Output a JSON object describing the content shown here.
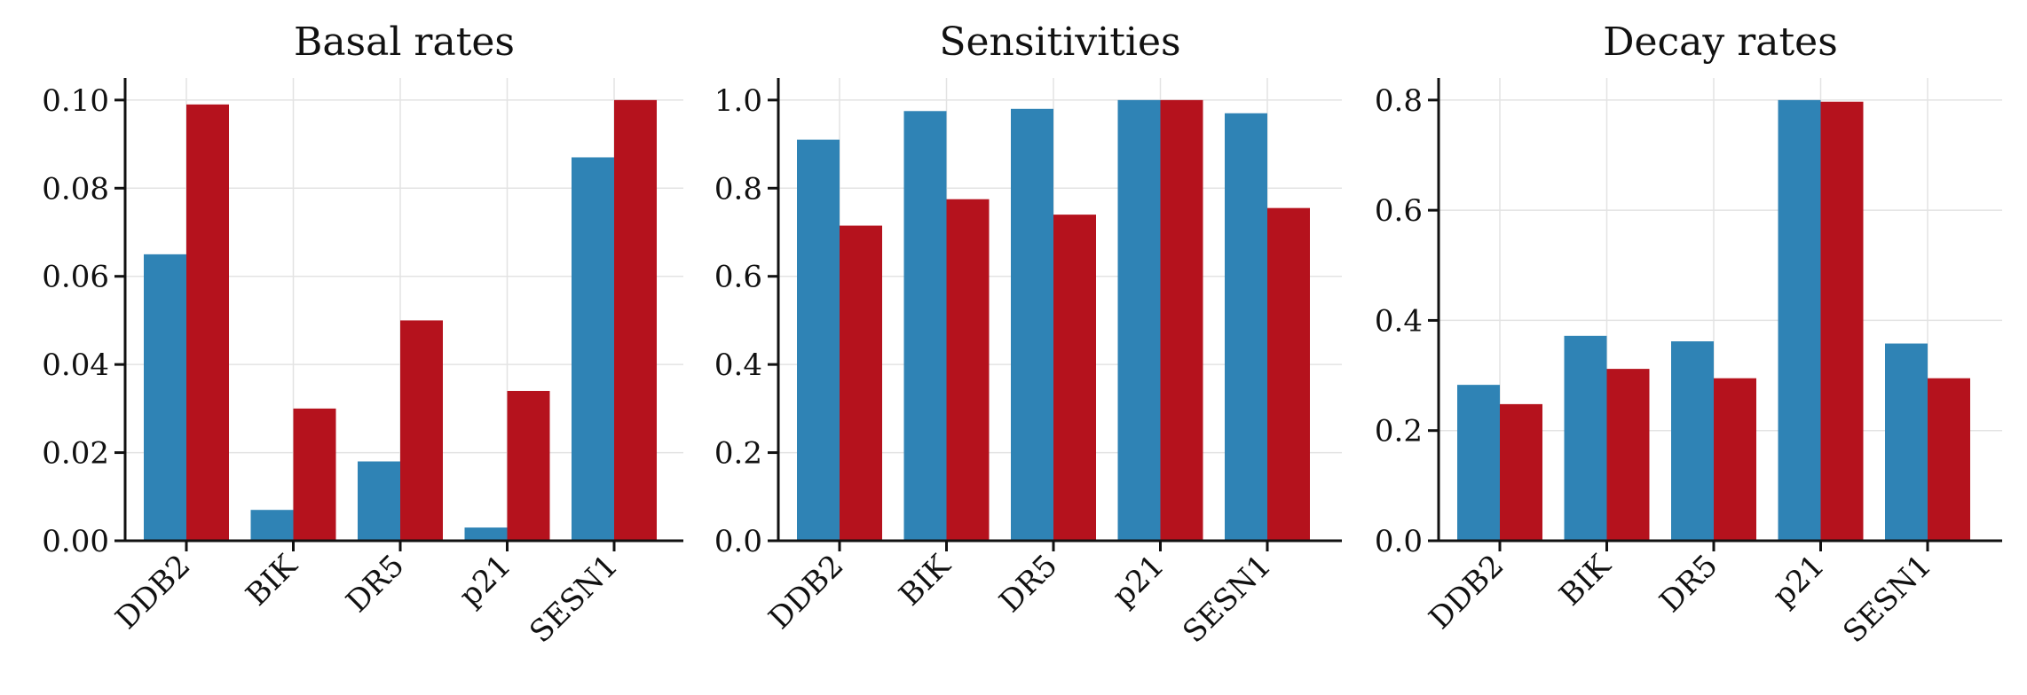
{
  "colors": {
    "series_a": "#2f83b5",
    "series_b": "#b5121d"
  },
  "chart_data": [
    {
      "type": "bar",
      "title": "Basal rates",
      "categories": [
        "DDB2",
        "BIK",
        "DR5",
        "p21",
        "SESN1"
      ],
      "series": [
        {
          "values": [
            0.065,
            0.007,
            0.018,
            0.003,
            0.087
          ]
        },
        {
          "values": [
            0.099,
            0.03,
            0.05,
            0.034,
            0.1
          ]
        }
      ],
      "ylim": [
        0,
        0.105
      ],
      "yticks": [
        0,
        0.02,
        0.04,
        0.06,
        0.08,
        0.1
      ],
      "ytick_labels": [
        "0.00",
        "0.02",
        "0.04",
        "0.06",
        "0.08",
        "0.10"
      ],
      "grid": true
    },
    {
      "type": "bar",
      "title": "Sensitivities",
      "categories": [
        "DDB2",
        "BIK",
        "DR5",
        "p21",
        "SESN1"
      ],
      "series": [
        {
          "values": [
            0.91,
            0.975,
            0.98,
            1.0,
            0.97
          ]
        },
        {
          "values": [
            0.715,
            0.775,
            0.74,
            1.0,
            0.755
          ]
        }
      ],
      "ylim": [
        0,
        1.05
      ],
      "yticks": [
        0,
        0.2,
        0.4,
        0.6,
        0.8,
        1.0
      ],
      "ytick_labels": [
        "0.0",
        "0.2",
        "0.4",
        "0.6",
        "0.8",
        "1.0"
      ],
      "grid": true
    },
    {
      "type": "bar",
      "title": "Decay rates",
      "categories": [
        "DDB2",
        "BIK",
        "DR5",
        "p21",
        "SESN1"
      ],
      "series": [
        {
          "values": [
            0.283,
            0.372,
            0.362,
            0.8,
            0.358
          ]
        },
        {
          "values": [
            0.248,
            0.312,
            0.295,
            0.797,
            0.295
          ]
        }
      ],
      "ylim": [
        0,
        0.84
      ],
      "yticks": [
        0,
        0.2,
        0.4,
        0.6,
        0.8
      ],
      "ytick_labels": [
        "0.0",
        "0.2",
        "0.4",
        "0.6",
        "0.8"
      ],
      "grid": true
    }
  ]
}
